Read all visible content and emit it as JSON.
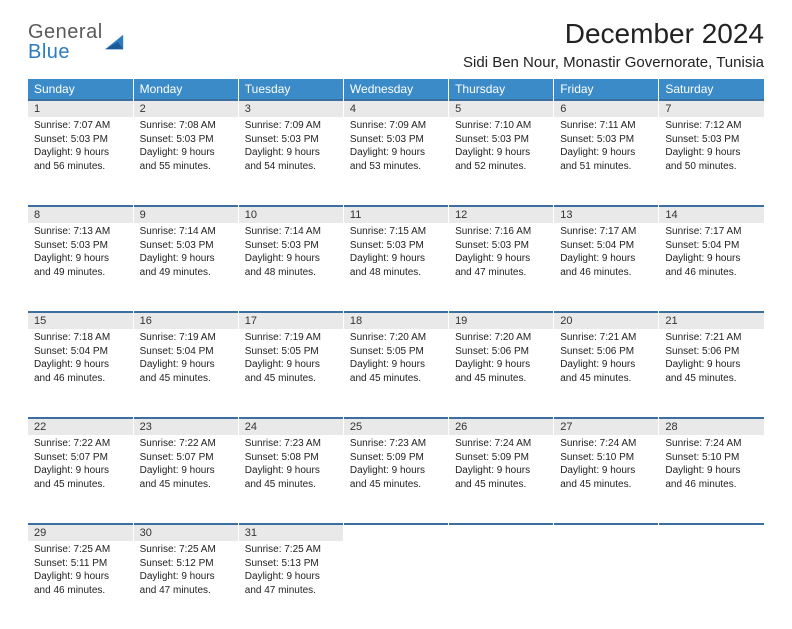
{
  "logo": {
    "top": "General",
    "bottom": "Blue"
  },
  "title": "December 2024",
  "location": "Sidi Ben Nour, Monastir Governorate, Tunisia",
  "colors": {
    "header_bg": "#3b8bc8",
    "header_text": "#ffffff",
    "daynum_bg": "#e9e9e9",
    "daynum_border": "#3b6fa0",
    "logo_gray": "#5a5a5a",
    "logo_blue": "#2d7bc0",
    "body_text": "#222222",
    "page_bg": "#ffffff"
  },
  "day_headers": [
    "Sunday",
    "Monday",
    "Tuesday",
    "Wednesday",
    "Thursday",
    "Friday",
    "Saturday"
  ],
  "weeks": [
    [
      {
        "n": "1",
        "sunrise": "Sunrise: 7:07 AM",
        "sunset": "Sunset: 5:03 PM",
        "d1": "Daylight: 9 hours",
        "d2": "and 56 minutes."
      },
      {
        "n": "2",
        "sunrise": "Sunrise: 7:08 AM",
        "sunset": "Sunset: 5:03 PM",
        "d1": "Daylight: 9 hours",
        "d2": "and 55 minutes."
      },
      {
        "n": "3",
        "sunrise": "Sunrise: 7:09 AM",
        "sunset": "Sunset: 5:03 PM",
        "d1": "Daylight: 9 hours",
        "d2": "and 54 minutes."
      },
      {
        "n": "4",
        "sunrise": "Sunrise: 7:09 AM",
        "sunset": "Sunset: 5:03 PM",
        "d1": "Daylight: 9 hours",
        "d2": "and 53 minutes."
      },
      {
        "n": "5",
        "sunrise": "Sunrise: 7:10 AM",
        "sunset": "Sunset: 5:03 PM",
        "d1": "Daylight: 9 hours",
        "d2": "and 52 minutes."
      },
      {
        "n": "6",
        "sunrise": "Sunrise: 7:11 AM",
        "sunset": "Sunset: 5:03 PM",
        "d1": "Daylight: 9 hours",
        "d2": "and 51 minutes."
      },
      {
        "n": "7",
        "sunrise": "Sunrise: 7:12 AM",
        "sunset": "Sunset: 5:03 PM",
        "d1": "Daylight: 9 hours",
        "d2": "and 50 minutes."
      }
    ],
    [
      {
        "n": "8",
        "sunrise": "Sunrise: 7:13 AM",
        "sunset": "Sunset: 5:03 PM",
        "d1": "Daylight: 9 hours",
        "d2": "and 49 minutes."
      },
      {
        "n": "9",
        "sunrise": "Sunrise: 7:14 AM",
        "sunset": "Sunset: 5:03 PM",
        "d1": "Daylight: 9 hours",
        "d2": "and 49 minutes."
      },
      {
        "n": "10",
        "sunrise": "Sunrise: 7:14 AM",
        "sunset": "Sunset: 5:03 PM",
        "d1": "Daylight: 9 hours",
        "d2": "and 48 minutes."
      },
      {
        "n": "11",
        "sunrise": "Sunrise: 7:15 AM",
        "sunset": "Sunset: 5:03 PM",
        "d1": "Daylight: 9 hours",
        "d2": "and 48 minutes."
      },
      {
        "n": "12",
        "sunrise": "Sunrise: 7:16 AM",
        "sunset": "Sunset: 5:03 PM",
        "d1": "Daylight: 9 hours",
        "d2": "and 47 minutes."
      },
      {
        "n": "13",
        "sunrise": "Sunrise: 7:17 AM",
        "sunset": "Sunset: 5:04 PM",
        "d1": "Daylight: 9 hours",
        "d2": "and 46 minutes."
      },
      {
        "n": "14",
        "sunrise": "Sunrise: 7:17 AM",
        "sunset": "Sunset: 5:04 PM",
        "d1": "Daylight: 9 hours",
        "d2": "and 46 minutes."
      }
    ],
    [
      {
        "n": "15",
        "sunrise": "Sunrise: 7:18 AM",
        "sunset": "Sunset: 5:04 PM",
        "d1": "Daylight: 9 hours",
        "d2": "and 46 minutes."
      },
      {
        "n": "16",
        "sunrise": "Sunrise: 7:19 AM",
        "sunset": "Sunset: 5:04 PM",
        "d1": "Daylight: 9 hours",
        "d2": "and 45 minutes."
      },
      {
        "n": "17",
        "sunrise": "Sunrise: 7:19 AM",
        "sunset": "Sunset: 5:05 PM",
        "d1": "Daylight: 9 hours",
        "d2": "and 45 minutes."
      },
      {
        "n": "18",
        "sunrise": "Sunrise: 7:20 AM",
        "sunset": "Sunset: 5:05 PM",
        "d1": "Daylight: 9 hours",
        "d2": "and 45 minutes."
      },
      {
        "n": "19",
        "sunrise": "Sunrise: 7:20 AM",
        "sunset": "Sunset: 5:06 PM",
        "d1": "Daylight: 9 hours",
        "d2": "and 45 minutes."
      },
      {
        "n": "20",
        "sunrise": "Sunrise: 7:21 AM",
        "sunset": "Sunset: 5:06 PM",
        "d1": "Daylight: 9 hours",
        "d2": "and 45 minutes."
      },
      {
        "n": "21",
        "sunrise": "Sunrise: 7:21 AM",
        "sunset": "Sunset: 5:06 PM",
        "d1": "Daylight: 9 hours",
        "d2": "and 45 minutes."
      }
    ],
    [
      {
        "n": "22",
        "sunrise": "Sunrise: 7:22 AM",
        "sunset": "Sunset: 5:07 PM",
        "d1": "Daylight: 9 hours",
        "d2": "and 45 minutes."
      },
      {
        "n": "23",
        "sunrise": "Sunrise: 7:22 AM",
        "sunset": "Sunset: 5:07 PM",
        "d1": "Daylight: 9 hours",
        "d2": "and 45 minutes."
      },
      {
        "n": "24",
        "sunrise": "Sunrise: 7:23 AM",
        "sunset": "Sunset: 5:08 PM",
        "d1": "Daylight: 9 hours",
        "d2": "and 45 minutes."
      },
      {
        "n": "25",
        "sunrise": "Sunrise: 7:23 AM",
        "sunset": "Sunset: 5:09 PM",
        "d1": "Daylight: 9 hours",
        "d2": "and 45 minutes."
      },
      {
        "n": "26",
        "sunrise": "Sunrise: 7:24 AM",
        "sunset": "Sunset: 5:09 PM",
        "d1": "Daylight: 9 hours",
        "d2": "and 45 minutes."
      },
      {
        "n": "27",
        "sunrise": "Sunrise: 7:24 AM",
        "sunset": "Sunset: 5:10 PM",
        "d1": "Daylight: 9 hours",
        "d2": "and 45 minutes."
      },
      {
        "n": "28",
        "sunrise": "Sunrise: 7:24 AM",
        "sunset": "Sunset: 5:10 PM",
        "d1": "Daylight: 9 hours",
        "d2": "and 46 minutes."
      }
    ],
    [
      {
        "n": "29",
        "sunrise": "Sunrise: 7:25 AM",
        "sunset": "Sunset: 5:11 PM",
        "d1": "Daylight: 9 hours",
        "d2": "and 46 minutes."
      },
      {
        "n": "30",
        "sunrise": "Sunrise: 7:25 AM",
        "sunset": "Sunset: 5:12 PM",
        "d1": "Daylight: 9 hours",
        "d2": "and 47 minutes."
      },
      {
        "n": "31",
        "sunrise": "Sunrise: 7:25 AM",
        "sunset": "Sunset: 5:13 PM",
        "d1": "Daylight: 9 hours",
        "d2": "and 47 minutes."
      },
      {
        "n": "",
        "sunrise": "",
        "sunset": "",
        "d1": "",
        "d2": ""
      },
      {
        "n": "",
        "sunrise": "",
        "sunset": "",
        "d1": "",
        "d2": ""
      },
      {
        "n": "",
        "sunrise": "",
        "sunset": "",
        "d1": "",
        "d2": ""
      },
      {
        "n": "",
        "sunrise": "",
        "sunset": "",
        "d1": "",
        "d2": ""
      }
    ]
  ]
}
